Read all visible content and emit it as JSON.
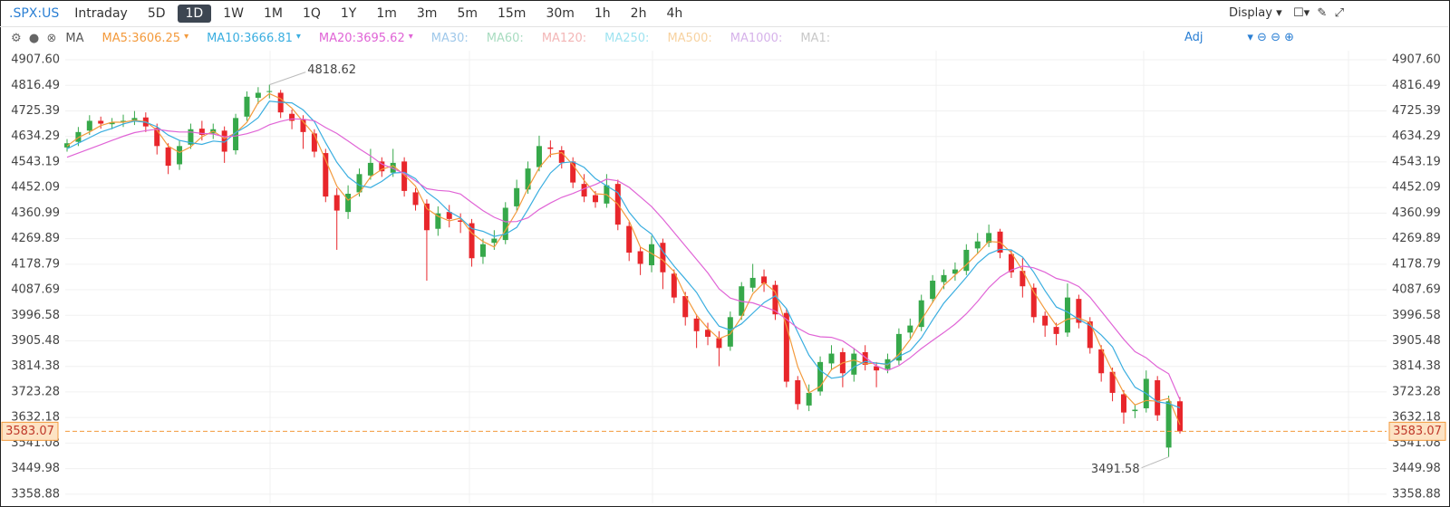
{
  "toolbar": {
    "symbol": ".SPX:US",
    "periods": [
      "Intraday",
      "5D",
      "1D",
      "1W",
      "1M",
      "1Q",
      "1Y",
      "1m",
      "3m",
      "5m",
      "15m",
      "30m",
      "1h",
      "2h",
      "4h"
    ],
    "selected": "1D",
    "display": "Display"
  },
  "indicators": {
    "name": "MA",
    "inactive": [
      {
        "name": "MA30:",
        "color": "#9fc8ea"
      },
      {
        "name": "MA60:",
        "color": "#a8dcc0"
      },
      {
        "name": "MA120:",
        "color": "#f3b6b6"
      },
      {
        "name": "MA250:",
        "color": "#9fe3f0"
      },
      {
        "name": "MA500:",
        "color": "#f7d2a0"
      },
      {
        "name": "MA1000:",
        "color": "#d6b2ea"
      },
      {
        "name": "MA1:",
        "color": "#c8c8c8"
      }
    ],
    "adjust": "Adj"
  },
  "chart_data": {
    "type": "candlestick",
    "up_color": "#36a84a",
    "down_color": "#e8262b",
    "grid": true,
    "ylim": [
      3326,
      4940
    ],
    "yticks": [
      {
        "value": 4907.6,
        "label": "4907.60"
      },
      4816.49,
      4725.39,
      4634.29,
      4543.19,
      4452.09,
      4360.99,
      4269.89,
      4178.79,
      4087.69,
      3996.58,
      3905.48,
      3814.38,
      3723.28,
      3632.18,
      3541.08,
      3449.98,
      3358.88
    ],
    "open": [
      4595,
      4615,
      4655,
      4690,
      4678,
      4688,
      4692,
      4702,
      4665,
      4595,
      4535,
      4605,
      4662,
      4645,
      4655,
      4585,
      4705,
      4772,
      4793,
      4790,
      4715,
      4695,
      4645,
      4575,
      4425,
      4365,
      4435,
      4495,
      4545,
      4505,
      4545,
      4435,
      4395,
      4305,
      4365,
      4335,
      4325,
      4205,
      4255,
      4265,
      4385,
      4445,
      4525,
      4595,
      4585,
      4545,
      4465,
      4425,
      4395,
      4465,
      4315,
      4225,
      4175,
      4255,
      4145,
      4065,
      3985,
      3945,
      3915,
      3885,
      3995,
      4095,
      4135,
      4105,
      4005,
      3765,
      3675,
      3725,
      3825,
      3865,
      3785,
      3865,
      3815,
      3805,
      3835,
      3935,
      3955,
      4055,
      4115,
      4145,
      4155,
      4235,
      4255,
      4295,
      4215,
      4155,
      4095,
      3995,
      3955,
      3935,
      4055,
      3975,
      3875,
      3795,
      3715,
      3655,
      3665,
      3765,
      3525,
      3690
    ],
    "high": [
      4625,
      4668,
      4710,
      4705,
      4700,
      4712,
      4725,
      4720,
      4680,
      4610,
      4620,
      4680,
      4690,
      4680,
      4670,
      4715,
      4795,
      4810,
      4818.62,
      4800,
      4730,
      4710,
      4660,
      4590,
      4450,
      4460,
      4520,
      4590,
      4560,
      4590,
      4560,
      4450,
      4410,
      4385,
      4390,
      4360,
      4340,
      4270,
      4300,
      4400,
      4480,
      4545,
      4637,
      4620,
      4600,
      4560,
      4500,
      4440,
      4500,
      4480,
      4330,
      4240,
      4280,
      4270,
      4160,
      4080,
      4000,
      3970,
      3940,
      4010,
      4115,
      4180,
      4160,
      4120,
      4020,
      3780,
      3750,
      3850,
      3890,
      3880,
      3880,
      3890,
      3830,
      3860,
      3950,
      3985,
      4070,
      4140,
      4160,
      4185,
      4250,
      4290,
      4320,
      4305,
      4230,
      4200,
      4110,
      4010,
      3970,
      4110,
      4070,
      3990,
      3890,
      3810,
      3730,
      3680,
      3800,
      3780,
      3710,
      3705
    ],
    "low": [
      4580,
      4600,
      4640,
      4662,
      4660,
      4668,
      4675,
      4650,
      4570,
      4500,
      4515,
      4590,
      4620,
      4625,
      4540,
      4570,
      4690,
      4750,
      4770,
      4700,
      4660,
      4590,
      4560,
      4400,
      4230,
      4340,
      4420,
      4480,
      4490,
      4490,
      4420,
      4370,
      4120,
      4280,
      4310,
      4290,
      4170,
      4180,
      4230,
      4250,
      4370,
      4430,
      4510,
      4560,
      4520,
      4450,
      4400,
      4380,
      4380,
      4300,
      4190,
      4140,
      4150,
      4090,
      4040,
      3960,
      3880,
      3890,
      3815,
      3870,
      3980,
      4080,
      4080,
      3980,
      3740,
      3660,
      3655,
      3710,
      3800,
      3740,
      3760,
      3800,
      3740,
      3790,
      3820,
      3915,
      3940,
      4040,
      4090,
      4120,
      4140,
      4215,
      4240,
      4200,
      4130,
      4060,
      3970,
      3920,
      3890,
      3920,
      3950,
      3860,
      3760,
      3690,
      3610,
      3630,
      3650,
      3620,
      3491.58,
      3575
    ],
    "close": [
      4610,
      4650,
      4690,
      4680,
      4685,
      4690,
      4700,
      4670,
      4600,
      4530,
      4600,
      4660,
      4640,
      4660,
      4580,
      4700,
      4776,
      4790,
      4796,
      4720,
      4690,
      4650,
      4580,
      4420,
      4370,
      4430,
      4500,
      4540,
      4510,
      4540,
      4440,
      4390,
      4300,
      4360,
      4340,
      4330,
      4200,
      4250,
      4270,
      4380,
      4450,
      4520,
      4600,
      4590,
      4540,
      4470,
      4420,
      4400,
      4460,
      4320,
      4220,
      4180,
      4250,
      4150,
      4060,
      3990,
      3940,
      3920,
      3880,
      3990,
      4100,
      4130,
      4110,
      4000,
      3760,
      3680,
      3720,
      3830,
      3860,
      3790,
      3860,
      3820,
      3800,
      3840,
      3930,
      3960,
      4050,
      4120,
      4140,
      4160,
      4230,
      4260,
      4290,
      4220,
      4150,
      4100,
      3990,
      3960,
      3930,
      4060,
      3970,
      3880,
      3790,
      3720,
      3650,
      3660,
      3770,
      3640,
      3690,
      3583.07
    ],
    "series": [
      {
        "name": "MA5:3606.25",
        "color": "#f39a3c",
        "values": [
          4600,
          4630,
          4650,
          4673,
          4685,
          4685,
          4692,
          4687,
          4657,
          4600,
          4577,
          4597,
          4633,
          4653,
          4627,
          4647,
          4685,
          4755,
          4787,
          4769,
          4735,
          4687,
          4640,
          4550,
          4457,
          4407,
          4433,
          4490,
          4517,
          4530,
          4497,
          4457,
          4377,
          4350,
          4333,
          4343,
          4290,
          4260,
          4240,
          4300,
          4367,
          4450,
          4523,
          4570,
          4577,
          4533,
          4477,
          4430,
          4427,
          4393,
          4333,
          4240,
          4217,
          4193,
          4153,
          4067,
          3997,
          3950,
          3913,
          3930,
          3990,
          4073,
          4113,
          4080,
          3957,
          3813,
          3720,
          3743,
          3803,
          3827,
          3837,
          3823,
          3827,
          3820,
          3857,
          3910,
          3980,
          4043,
          4103,
          4140,
          4177,
          4217,
          4260,
          4257,
          4220,
          4157,
          4080,
          4017,
          3960,
          3983,
          3987,
          3970,
          3880,
          3797,
          3720,
          3677,
          3693,
          3690,
          3700,
          3606.25
        ]
      },
      {
        "name": "MA10:3666.81",
        "color": "#3aaee0",
        "values": [
          4590,
          4610,
          4630,
          4650,
          4663,
          4679,
          4689,
          4685,
          4669,
          4639,
          4620,
          4612,
          4606,
          4618,
          4614,
          4648,
          4671,
          4701,
          4760,
          4756,
          4754,
          4729,
          4687,
          4612,
          4542,
          4490,
          4460,
          4452,
          4474,
          4504,
          4506,
          4484,
          4436,
          4406,
          4366,
          4344,
          4306,
          4296,
          4278,
          4286,
          4310,
          4374,
          4444,
          4504,
          4540,
          4544,
          4524,
          4484,
          4458,
          4434,
          4364,
          4316,
          4286,
          4224,
          4172,
          4126,
          4078,
          4012,
          3958,
          3944,
          3966,
          4004,
          4042,
          4066,
          4020,
          3936,
          3854,
          3800,
          3772,
          3778,
          3812,
          3832,
          3826,
          3822,
          3850,
          3870,
          3916,
          3980,
          4040,
          4086,
          4132,
          4182,
          4216,
          4232,
          4230,
          4204,
          4150,
          4084,
          4026,
          4008,
          3982,
          3960,
          3926,
          3884,
          3802,
          3740,
          3718,
          3688,
          3682,
          3666.81
        ]
      },
      {
        "name": "MA20:3695.62",
        "color": "#e064d6",
        "values": [
          4560,
          4575,
          4590,
          4605,
          4620,
          4635,
          4648,
          4655,
          4660,
          4654,
          4650,
          4650,
          4645,
          4643,
          4633,
          4636,
          4644,
          4656,
          4676,
          4688,
          4697,
          4696,
          4690,
          4666,
          4645,
          4618,
          4590,
          4565,
          4536,
          4520,
          4502,
          4476,
          4448,
          4442,
          4439,
          4429,
          4399,
          4370,
          4346,
          4330,
          4331,
          4344,
          4374,
          4397,
          4417,
          4431,
          4448,
          4463,
          4482,
          4476,
          4453,
          4419,
          4384,
          4340,
          4292,
          4244,
          4196,
          4148,
          4091,
          4058,
          4046,
          4041,
          4027,
          4012,
          3982,
          3951,
          3929,
          3920,
          3918,
          3905,
          3878,
          3847,
          3816,
          3800,
          3817,
          3845,
          3878,
          3907,
          3935,
          3965,
          4002,
          4046,
          4095,
          4133,
          4158,
          4172,
          4166,
          4150,
          4128,
          4118,
          4099,
          4061,
          4011,
          3961,
          3911,
          3867,
          3845,
          3812,
          3788,
          3695.62
        ]
      }
    ]
  }
}
